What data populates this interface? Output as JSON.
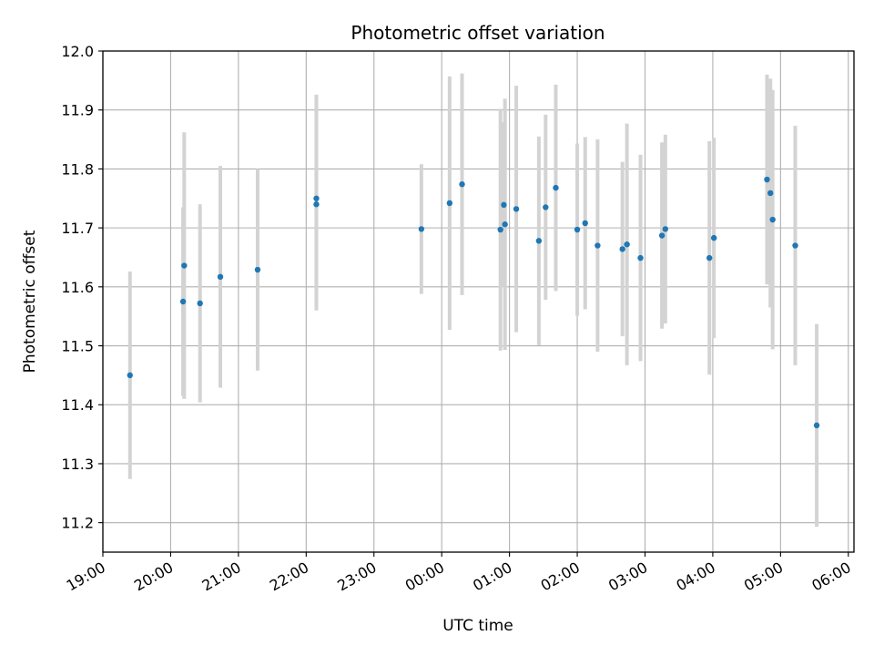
{
  "chart_data": {
    "type": "scatter",
    "title": "Photometric offset variation",
    "xlabel": "UTC time",
    "ylabel": "Photometric offset",
    "ylim": [
      11.15,
      12.0
    ],
    "xlim": [
      "19:00",
      "06:05"
    ],
    "grid": true,
    "colors": {
      "point": "#1f77b4",
      "errorbar": "#d3d3d3",
      "grid": "#b0b0b0"
    },
    "x_ticks": [
      "19:00",
      "20:00",
      "21:00",
      "22:00",
      "23:00",
      "00:00",
      "01:00",
      "02:00",
      "03:00",
      "04:00",
      "05:00",
      "06:00"
    ],
    "y_ticks": [
      "11.2",
      "11.3",
      "11.4",
      "11.5",
      "11.6",
      "11.7",
      "11.8",
      "11.9",
      "12.0"
    ],
    "series": [
      {
        "values": [
          {
            "x": "19:24",
            "y": 11.45,
            "yerr": 0.176
          },
          {
            "x": "20:11",
            "y": 11.575,
            "yerr": 0.16
          },
          {
            "x": "20:12",
            "y": 11.636,
            "yerr": 0.226
          },
          {
            "x": "20:26",
            "y": 11.572,
            "yerr": 0.168
          },
          {
            "x": "20:44",
            "y": 11.617,
            "yerr": 0.188
          },
          {
            "x": "21:17",
            "y": 11.629,
            "yerr": 0.171
          },
          {
            "x": "22:09",
            "y": 11.75,
            "yerr": 0.176
          },
          {
            "x": "22:09",
            "y": 11.74,
            "yerr": 0.18
          },
          {
            "x": "23:42",
            "y": 11.698,
            "yerr": 0.11
          },
          {
            "x": "00:07",
            "y": 11.742,
            "yerr": 0.215
          },
          {
            "x": "00:18",
            "y": 11.774,
            "yerr": 0.188
          },
          {
            "x": "00:52",
            "y": 11.697,
            "yerr": 0.205
          },
          {
            "x": "00:55",
            "y": 11.739,
            "yerr": 0.14
          },
          {
            "x": "00:56",
            "y": 11.706,
            "yerr": 0.213
          },
          {
            "x": "01:06",
            "y": 11.732,
            "yerr": 0.209
          },
          {
            "x": "01:26",
            "y": 11.678,
            "yerr": 0.177
          },
          {
            "x": "01:32",
            "y": 11.735,
            "yerr": 0.157
          },
          {
            "x": "01:41",
            "y": 11.768,
            "yerr": 0.175
          },
          {
            "x": "02:00",
            "y": 11.697,
            "yerr": 0.146
          },
          {
            "x": "02:07",
            "y": 11.708,
            "yerr": 0.146
          },
          {
            "x": "02:18",
            "y": 11.67,
            "yerr": 0.18
          },
          {
            "x": "02:40",
            "y": 11.664,
            "yerr": 0.148
          },
          {
            "x": "02:44",
            "y": 11.672,
            "yerr": 0.205
          },
          {
            "x": "02:56",
            "y": 11.649,
            "yerr": 0.175
          },
          {
            "x": "03:15",
            "y": 11.687,
            "yerr": 0.158
          },
          {
            "x": "03:18",
            "y": 11.698,
            "yerr": 0.16
          },
          {
            "x": "03:57",
            "y": 11.649,
            "yerr": 0.198
          },
          {
            "x": "04:01",
            "y": 11.683,
            "yerr": 0.17
          },
          {
            "x": "04:48",
            "y": 11.782,
            "yerr": 0.178
          },
          {
            "x": "04:51",
            "y": 11.759,
            "yerr": 0.194
          },
          {
            "x": "04:53",
            "y": 11.714,
            "yerr": 0.22
          },
          {
            "x": "05:13",
            "y": 11.67,
            "yerr": 0.203
          },
          {
            "x": "05:32",
            "y": 11.365,
            "yerr": 0.172
          }
        ]
      }
    ]
  }
}
